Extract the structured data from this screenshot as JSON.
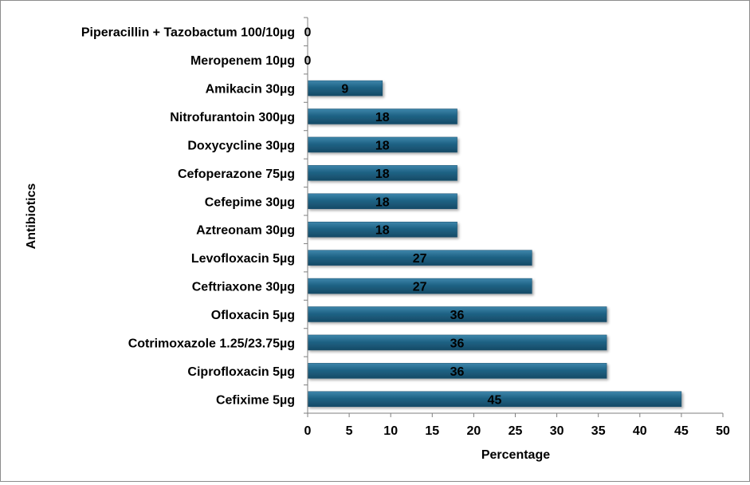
{
  "chart_data": {
    "type": "bar",
    "orientation": "horizontal",
    "categories": [
      "Piperacillin + Tazobactum 100/10µg",
      "Meropenem 10µg",
      "Amikacin 30µg",
      "Nitrofurantoin 300µg",
      "Doxycycline 30µg",
      "Cefoperazone 75µg",
      "Cefepime 30µg",
      "Aztreonam 30µg",
      "Levofloxacin 5µg",
      "Ceftriaxone 30µg",
      "Ofloxacin 5µg",
      "Cotrimoxazole 1.25/23.75µg",
      "Ciprofloxacin 5µg",
      "Cefixime 5µg"
    ],
    "values": [
      0,
      0,
      9,
      18,
      18,
      18,
      18,
      18,
      27,
      27,
      36,
      36,
      36,
      45
    ],
    "data_labels": [
      "0",
      "0",
      "9",
      "18",
      "18",
      "18",
      "18",
      "18",
      "27",
      "27",
      "36",
      "36",
      "36",
      "45"
    ],
    "xlabel": "Percentage",
    "ylabel": "Antibiotics",
    "xlim": [
      0,
      50
    ],
    "xticks": [
      "0",
      "5",
      "10",
      "15",
      "20",
      "25",
      "30",
      "35",
      "40",
      "45",
      "50"
    ],
    "grid": false,
    "legend": "none",
    "bar_color": "#1f6385"
  }
}
